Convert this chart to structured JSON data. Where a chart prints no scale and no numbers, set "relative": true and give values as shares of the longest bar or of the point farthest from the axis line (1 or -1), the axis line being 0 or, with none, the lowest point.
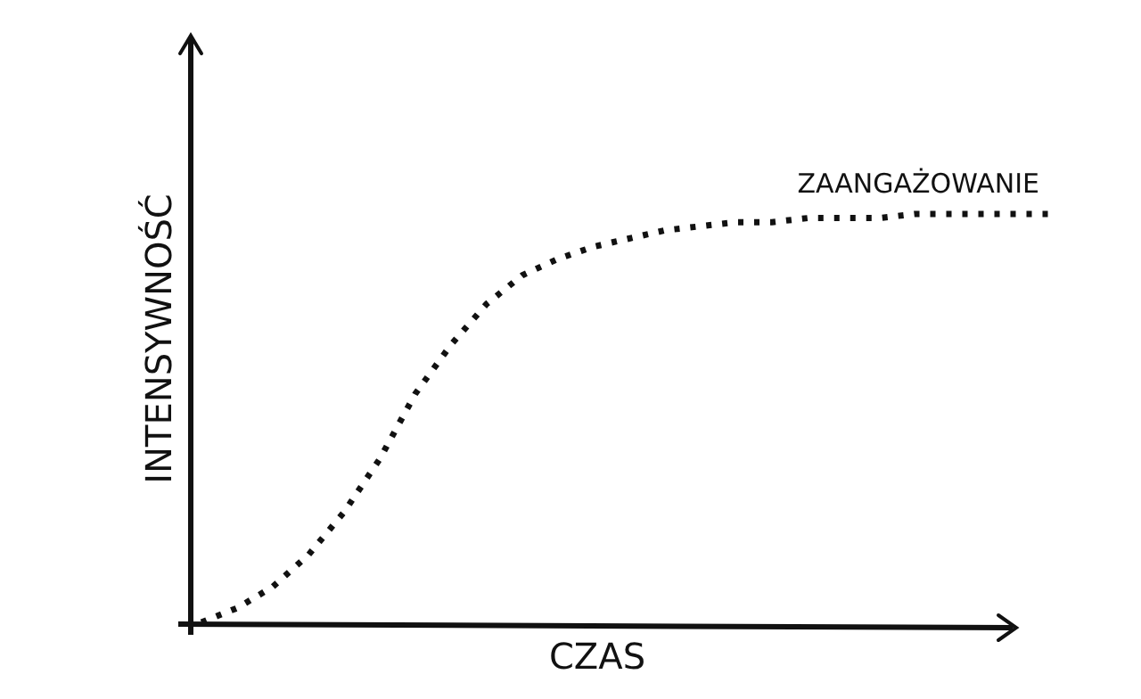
{
  "chart_data": {
    "type": "line",
    "relative": true,
    "xlabel": "CZAS",
    "ylabel": "INTENSYWNOŚĆ",
    "categories": [
      null,
      null,
      null,
      null,
      null,
      null,
      null,
      null,
      null,
      null,
      null,
      null,
      null,
      null,
      null,
      null,
      null,
      null,
      null,
      null,
      null,
      null,
      null,
      null,
      null
    ],
    "series": [
      {
        "name": "ZAANGAŻOWANIE",
        "color": "#111111",
        "values": [
          0,
          0.035,
          0.087,
          0.165,
          0.27,
          0.4,
          0.56,
          0.68,
          0.78,
          0.85,
          0.89,
          0.92,
          0.94,
          0.96,
          0.97,
          0.98,
          0.98,
          0.99,
          0.99,
          0.99,
          1,
          1,
          1,
          1,
          1
        ]
      }
    ],
    "line_style": "dotted",
    "marker": "none",
    "legend": false
  }
}
